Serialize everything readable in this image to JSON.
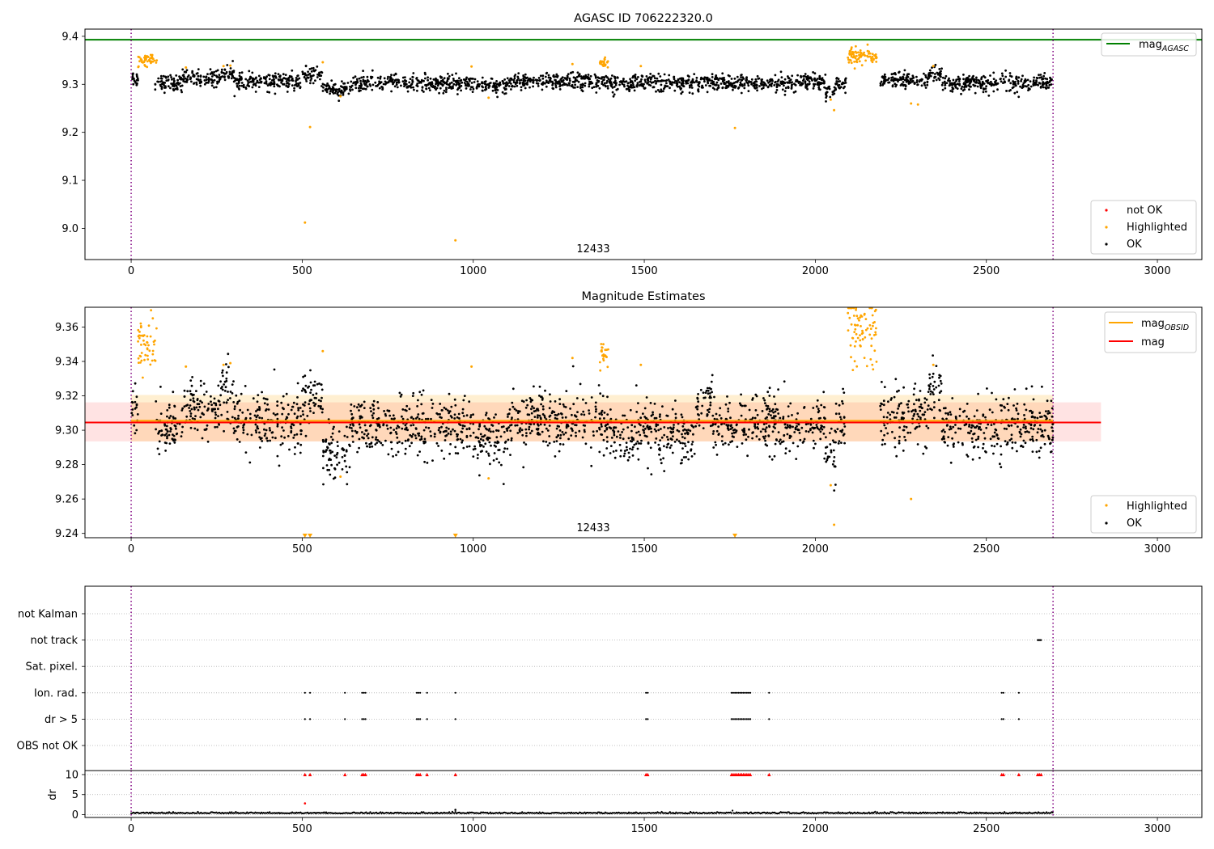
{
  "chart_data": [
    {
      "type": "scatter",
      "title": "AGASC ID 706222320.0",
      "xlim": [
        -135,
        3130
      ],
      "ylim": [
        8.935,
        9.415
      ],
      "xticks": [
        0,
        500,
        1000,
        1500,
        2000,
        2500,
        3000
      ],
      "yticks": [
        9.0,
        9.1,
        9.2,
        9.3,
        9.4
      ],
      "ytick_labels": [
        "9.0",
        "9.1",
        "9.2",
        "9.3",
        "9.4"
      ],
      "xlabel": "",
      "ylabel": "",
      "vlines": [
        0,
        2695
      ],
      "annotation": "12433",
      "hline": {
        "name": "mag_AGASC",
        "label_main": "mag",
        "label_sub": "AGASC",
        "value": 9.393,
        "color": "#008000"
      },
      "legend_top": {
        "placement": "top-right",
        "entries": [
          {
            "label": "mag",
            "sub": "AGASC",
            "color": "#008000",
            "kind": "line"
          }
        ]
      },
      "legend_bottom": {
        "placement": "lower-right",
        "entries": [
          {
            "label": "not OK",
            "color": "#ff0000",
            "kind": "dot"
          },
          {
            "label": "Highlighted",
            "color": "#ffa500",
            "kind": "dot"
          },
          {
            "label": "OK",
            "color": "#000000",
            "kind": "dot"
          }
        ]
      },
      "series": [
        {
          "name": "OK",
          "color": "#000000",
          "n": 2400,
          "x_range": [
            0,
            2695
          ],
          "segments": [
            [
              0,
              20,
              9.312
            ],
            [
              70,
              150,
              9.303
            ],
            [
              150,
              260,
              9.313
            ],
            [
              260,
              300,
              9.324
            ],
            [
              300,
              500,
              9.305
            ],
            [
              500,
              560,
              9.318
            ],
            [
              560,
              640,
              9.29
            ],
            [
              640,
              1000,
              9.302
            ],
            [
              1000,
              1100,
              9.298
            ],
            [
              1100,
              1400,
              9.305
            ],
            [
              1400,
              1700,
              9.303
            ],
            [
              1700,
              2030,
              9.303
            ],
            [
              2030,
              2060,
              9.285
            ],
            [
              2060,
              2090,
              9.302
            ],
            [
              2090,
              2190,
              null
            ],
            [
              2190,
              2330,
              9.308
            ],
            [
              2330,
              2370,
              9.322
            ],
            [
              2370,
              2695,
              9.302
            ]
          ]
        },
        {
          "name": "Highlighted",
          "color": "#ffa500",
          "clusters": [
            [
              20,
              75,
              9.351,
              0.008
            ],
            [
              1370,
              1395,
              9.346,
              0.004
            ],
            [
              2095,
              2180,
              9.36,
              0.008
            ]
          ],
          "points": [
            [
              508,
              9.012
            ],
            [
              523,
              9.211
            ],
            [
              948,
              8.975
            ],
            [
              1765,
              9.209
            ],
            [
              2045,
              9.268
            ],
            [
              2055,
              9.246
            ],
            [
              2280,
              9.26
            ],
            [
              1045,
              9.272
            ],
            [
              612,
              9.275
            ],
            [
              1290,
              9.342
            ],
            [
              1490,
              9.338
            ],
            [
              995,
              9.337
            ],
            [
              270,
              9.338
            ],
            [
              290,
              9.339
            ],
            [
              160,
              9.335
            ],
            [
              560,
              9.346
            ],
            [
              2345,
              9.338
            ],
            [
              2300,
              9.258
            ]
          ]
        }
      ]
    },
    {
      "type": "scatter",
      "title": "Magnitude Estimates",
      "xlim": [
        -135,
        3130
      ],
      "ylim": [
        9.2375,
        9.3715
      ],
      "xticks": [
        0,
        500,
        1000,
        1500,
        2000,
        2500,
        3000
      ],
      "yticks": [
        9.24,
        9.26,
        9.28,
        9.3,
        9.32,
        9.34,
        9.36
      ],
      "ytick_labels": [
        "9.24",
        "9.26",
        "9.28",
        "9.30",
        "9.32",
        "9.34",
        "9.36"
      ],
      "xlabel": "",
      "ylabel": "",
      "vlines": [
        0,
        2695
      ],
      "annotation": "12433",
      "lines": [
        {
          "name": "mag_OBSID",
          "label_main": "mag",
          "label_sub": "OBSID",
          "value": 9.3055,
          "x": [
            0,
            2695
          ],
          "color": "#ffa500",
          "band": [
            9.2935,
            9.3205
          ]
        },
        {
          "name": "mag",
          "label_main": "mag",
          "value": 9.3045,
          "x": [
            -135,
            2835
          ],
          "color": "#ff0000",
          "band": [
            9.2935,
            9.3162
          ]
        }
      ],
      "legend_top": {
        "placement": "top-right",
        "entries": [
          {
            "label": "mag",
            "sub": "OBSID",
            "color": "#ffa500",
            "kind": "line"
          },
          {
            "label": "mag",
            "sub": "",
            "color": "#ff0000",
            "kind": "line"
          }
        ]
      },
      "legend_bottom": {
        "placement": "lower-right",
        "entries": [
          {
            "label": "Highlighted",
            "color": "#ffa500",
            "kind": "dot"
          },
          {
            "label": "OK",
            "color": "#000000",
            "kind": "dot"
          }
        ]
      },
      "series": [
        {
          "name": "OK",
          "color": "#000000",
          "n": 2400,
          "x_range": [
            0,
            2695
          ],
          "segments": [
            [
              0,
              20,
              9.314
            ],
            [
              70,
              150,
              9.302
            ],
            [
              150,
              260,
              9.313
            ],
            [
              260,
              300,
              9.322
            ],
            [
              300,
              500,
              9.305
            ],
            [
              500,
              560,
              9.318
            ],
            [
              560,
              640,
              9.287
            ],
            [
              640,
              1000,
              9.302
            ],
            [
              1000,
              1100,
              9.295
            ],
            [
              1100,
              1400,
              9.305
            ],
            [
              1400,
              1650,
              9.298
            ],
            [
              1650,
              1700,
              9.315
            ],
            [
              1700,
              2030,
              9.303
            ],
            [
              2030,
              2060,
              9.285
            ],
            [
              2060,
              2090,
              9.302
            ],
            [
              2090,
              2190,
              null
            ],
            [
              2190,
              2330,
              9.308
            ],
            [
              2330,
              2370,
              9.322
            ],
            [
              2370,
              2695,
              9.302
            ]
          ]
        },
        {
          "name": "Highlighted",
          "color": "#ffa500",
          "clusters": [
            [
              20,
              75,
              9.35,
              0.008
            ],
            [
              1370,
              1395,
              9.345,
              0.004
            ],
            [
              2095,
              2180,
              9.358,
              0.01
            ]
          ],
          "points": [
            [
              612,
              9.273
            ],
            [
              1045,
              9.272
            ],
            [
              2045,
              9.268
            ],
            [
              2055,
              9.245
            ],
            [
              2280,
              9.26
            ],
            [
              1290,
              9.342
            ],
            [
              1490,
              9.338
            ],
            [
              995,
              9.337
            ],
            [
              270,
              9.338
            ],
            [
              290,
              9.339
            ],
            [
              160,
              9.337
            ],
            [
              560,
              9.346
            ],
            [
              2345,
              9.338
            ]
          ],
          "clipped_below": [
            508,
            523,
            948,
            1765
          ]
        }
      ]
    },
    {
      "type": "scatter",
      "title": "",
      "xlim": [
        -135,
        3130
      ],
      "xticks": [
        0,
        500,
        1000,
        1500,
        2000,
        2500,
        3000
      ],
      "xlabel": "",
      "vlines": [
        0,
        2695
      ],
      "flag_categories": [
        "not Kalman",
        "not track",
        "Sat. pixel.",
        "Ion. rad.",
        "dr > 5",
        "OBS not OK"
      ],
      "flags": {
        "not track": [
          2650,
          2652,
          2654,
          2656,
          2658,
          2660
        ],
        "Ion. rad.": [
          508,
          523,
          625,
          675,
          680,
          685,
          835,
          840,
          845,
          865,
          948,
          1505,
          1510,
          1755,
          1760,
          1765,
          1770,
          1775,
          1780,
          1785,
          1790,
          1795,
          1800,
          1805,
          1810,
          1865,
          2545,
          2550,
          2595
        ],
        "dr > 5": [
          508,
          523,
          625,
          675,
          680,
          685,
          835,
          840,
          845,
          865,
          948,
          1505,
          1510,
          1755,
          1760,
          1765,
          1770,
          1775,
          1780,
          1785,
          1790,
          1795,
          1800,
          1805,
          1810,
          1865,
          2545,
          2550,
          2595
        ]
      },
      "dr": {
        "ylabel": "dr",
        "yticks": [
          0,
          5,
          10
        ],
        "ytick_labels": [
          "0",
          "5",
          "10"
        ],
        "ylim": [
          -0.7,
          11
        ],
        "baseline": 0.3,
        "outliers": [
          [
            508,
            2.8
          ],
          [
            948,
            1.2
          ]
        ],
        "capped": [
          508,
          523,
          625,
          675,
          680,
          685,
          835,
          840,
          845,
          865,
          948,
          1505,
          1510,
          1755,
          1760,
          1765,
          1770,
          1775,
          1780,
          1785,
          1790,
          1795,
          1800,
          1805,
          1810,
          1865,
          2545,
          2550,
          2595,
          2650,
          2655,
          2660
        ]
      }
    }
  ]
}
